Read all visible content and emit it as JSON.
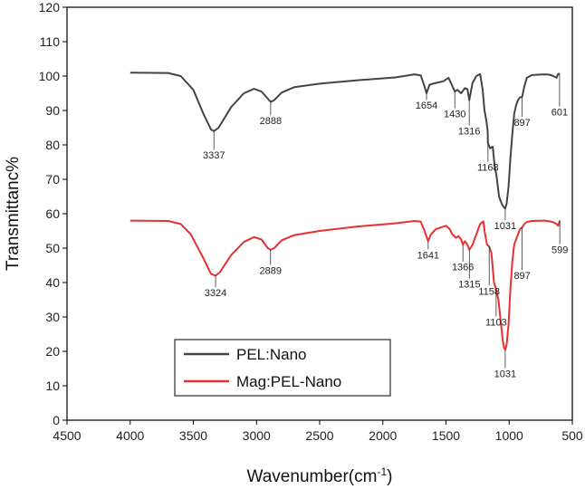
{
  "chart_data": {
    "type": "line",
    "xlabel": "Wavenumber(cm",
    "xlabel_sup": "-1",
    "xlabel_close": ")",
    "ylabel": "Transmittanc%",
    "xlim": [
      4500,
      500
    ],
    "ylim": [
      0,
      120
    ],
    "xticks": [
      4500,
      4000,
      3500,
      3000,
      2500,
      2000,
      1500,
      1000,
      500
    ],
    "yticks": [
      0,
      10,
      20,
      30,
      40,
      50,
      60,
      70,
      80,
      90,
      100,
      110,
      120
    ],
    "legend": {
      "position": "bottom-left"
    },
    "series": [
      {
        "name": "PEL:Nano",
        "color": "#444444",
        "points": [
          [
            4000,
            101
          ],
          [
            3700,
            100.9
          ],
          [
            3600,
            100
          ],
          [
            3500,
            96
          ],
          [
            3420,
            89
          ],
          [
            3360,
            84.5
          ],
          [
            3337,
            84
          ],
          [
            3300,
            85
          ],
          [
            3200,
            91
          ],
          [
            3100,
            95
          ],
          [
            3020,
            96.3
          ],
          [
            2960,
            95.5
          ],
          [
            2900,
            93
          ],
          [
            2888,
            92.5
          ],
          [
            2860,
            93
          ],
          [
            2800,
            95.2
          ],
          [
            2700,
            96.8
          ],
          [
            2500,
            97.8
          ],
          [
            2200,
            98.8
          ],
          [
            1900,
            99.6
          ],
          [
            1750,
            100.5
          ],
          [
            1700,
            100.2
          ],
          [
            1670,
            97
          ],
          [
            1654,
            95
          ],
          [
            1630,
            97.5
          ],
          [
            1580,
            98
          ],
          [
            1520,
            98.5
          ],
          [
            1480,
            99.5
          ],
          [
            1455,
            97.5
          ],
          [
            1430,
            95.5
          ],
          [
            1410,
            96
          ],
          [
            1380,
            95
          ],
          [
            1350,
            96.5
          ],
          [
            1330,
            96.2
          ],
          [
            1316,
            93
          ],
          [
            1290,
            98
          ],
          [
            1260,
            100
          ],
          [
            1230,
            100.6
          ],
          [
            1210,
            96
          ],
          [
            1195,
            90
          ],
          [
            1180,
            87
          ],
          [
            1170,
            84
          ],
          [
            1168,
            80.5
          ],
          [
            1150,
            79
          ],
          [
            1130,
            79.5
          ],
          [
            1115,
            74
          ],
          [
            1100,
            71
          ],
          [
            1080,
            65
          ],
          [
            1060,
            63
          ],
          [
            1045,
            62
          ],
          [
            1031,
            61.5
          ],
          [
            1020,
            63
          ],
          [
            1005,
            68
          ],
          [
            990,
            76
          ],
          [
            975,
            83
          ],
          [
            960,
            89
          ],
          [
            945,
            91.5
          ],
          [
            930,
            93
          ],
          [
            915,
            93.8
          ],
          [
            897,
            94
          ],
          [
            880,
            97
          ],
          [
            860,
            99.5
          ],
          [
            820,
            100.3
          ],
          [
            720,
            100.5
          ],
          [
            680,
            100.4
          ],
          [
            650,
            100
          ],
          [
            625,
            99.5
          ],
          [
            615,
            100.5
          ],
          [
            601,
            100.8
          ]
        ],
        "peaks": [
          3337,
          2888,
          1654,
          1430,
          1316,
          1168,
          1031,
          897,
          601
        ]
      },
      {
        "name": "Mag:PEL-Nano",
        "color": "#e83030",
        "points": [
          [
            4000,
            58
          ],
          [
            3700,
            57.9
          ],
          [
            3600,
            57
          ],
          [
            3520,
            54
          ],
          [
            3420,
            47
          ],
          [
            3360,
            42.5
          ],
          [
            3324,
            42
          ],
          [
            3290,
            43
          ],
          [
            3200,
            48
          ],
          [
            3100,
            51.8
          ],
          [
            3020,
            53.2
          ],
          [
            2960,
            52.5
          ],
          [
            2910,
            50
          ],
          [
            2889,
            49.5
          ],
          [
            2860,
            50
          ],
          [
            2800,
            52.3
          ],
          [
            2700,
            53.8
          ],
          [
            2500,
            55
          ],
          [
            2200,
            56.3
          ],
          [
            1900,
            57.2
          ],
          [
            1750,
            57.9
          ],
          [
            1700,
            57.7
          ],
          [
            1670,
            55
          ],
          [
            1641,
            52
          ],
          [
            1620,
            54
          ],
          [
            1580,
            55.5
          ],
          [
            1540,
            56
          ],
          [
            1500,
            56.5
          ],
          [
            1470,
            55.5
          ],
          [
            1450,
            54
          ],
          [
            1420,
            53
          ],
          [
            1400,
            53.5
          ],
          [
            1380,
            52.5
          ],
          [
            1366,
            51
          ],
          [
            1350,
            52
          ],
          [
            1330,
            51
          ],
          [
            1315,
            49.5
          ],
          [
            1290,
            51
          ],
          [
            1260,
            54
          ],
          [
            1230,
            57
          ],
          [
            1205,
            57.8
          ],
          [
            1190,
            54
          ],
          [
            1175,
            51
          ],
          [
            1158,
            50.5
          ],
          [
            1140,
            48.5
          ],
          [
            1120,
            40
          ],
          [
            1103,
            38
          ],
          [
            1085,
            35
          ],
          [
            1065,
            28
          ],
          [
            1050,
            23
          ],
          [
            1040,
            21
          ],
          [
            1031,
            20.5
          ],
          [
            1020,
            22
          ],
          [
            1005,
            28
          ],
          [
            990,
            38
          ],
          [
            975,
            46
          ],
          [
            960,
            51
          ],
          [
            945,
            52.5
          ],
          [
            930,
            54
          ],
          [
            915,
            55.5
          ],
          [
            897,
            56
          ],
          [
            880,
            57
          ],
          [
            860,
            57.6
          ],
          [
            820,
            57.9
          ],
          [
            720,
            58
          ],
          [
            680,
            57.8
          ],
          [
            650,
            57.5
          ],
          [
            625,
            57
          ],
          [
            612,
            56.5
          ],
          [
            599,
            58
          ]
        ],
        "peaks": [
          3324,
          2889,
          1641,
          1366,
          1315,
          1158,
          1103,
          1031,
          897,
          599
        ]
      }
    ],
    "annotations": [
      {
        "text": "3337",
        "x": 3337,
        "y": 84,
        "label_y": 76,
        "series": 0
      },
      {
        "text": "2888",
        "x": 2888,
        "y": 92.5,
        "label_y": 86,
        "series": 0
      },
      {
        "text": "1654",
        "x": 1654,
        "y": 95,
        "label_y": 90.5,
        "series": 0
      },
      {
        "text": "1430",
        "x": 1430,
        "y": 95.5,
        "label_y": 88,
        "series": 0
      },
      {
        "text": "1316",
        "x": 1316,
        "y": 93,
        "label_y": 83,
        "series": 0
      },
      {
        "text": "1168",
        "x": 1168,
        "y": 80.5,
        "label_y": 72.5,
        "series": 0
      },
      {
        "text": "1031",
        "x": 1031,
        "y": 61.5,
        "label_y": 55.5,
        "series": 0
      },
      {
        "text": "897",
        "x": 897,
        "y": 94,
        "label_y": 85.5,
        "series": 0
      },
      {
        "text": "601",
        "x": 601,
        "y": 100.8,
        "label_y": 88.5,
        "series": 0
      },
      {
        "text": "3324",
        "x": 3324,
        "y": 42,
        "label_y": 36,
        "series": 1
      },
      {
        "text": "2889",
        "x": 2889,
        "y": 49.5,
        "label_y": 42.5,
        "series": 1
      },
      {
        "text": "1641",
        "x": 1641,
        "y": 52,
        "label_y": 47,
        "series": 1
      },
      {
        "text": "1366",
        "x": 1366,
        "y": 51,
        "label_y": 43.5,
        "series": 1
      },
      {
        "text": "1315",
        "x": 1315,
        "y": 49.5,
        "label_y": 38.5,
        "series": 1
      },
      {
        "text": "1158",
        "x": 1158,
        "y": 50.5,
        "label_y": 36.5,
        "series": 1
      },
      {
        "text": "1103",
        "x": 1103,
        "y": 38,
        "label_y": 27.5,
        "series": 1
      },
      {
        "text": "1031",
        "x": 1031,
        "y": 20.5,
        "label_y": 12.5,
        "series": 1
      },
      {
        "text": "897",
        "x": 897,
        "y": 56,
        "label_y": 41,
        "series": 1
      },
      {
        "text": "599",
        "x": 599,
        "y": 58,
        "label_y": 48.5,
        "series": 1
      }
    ]
  }
}
